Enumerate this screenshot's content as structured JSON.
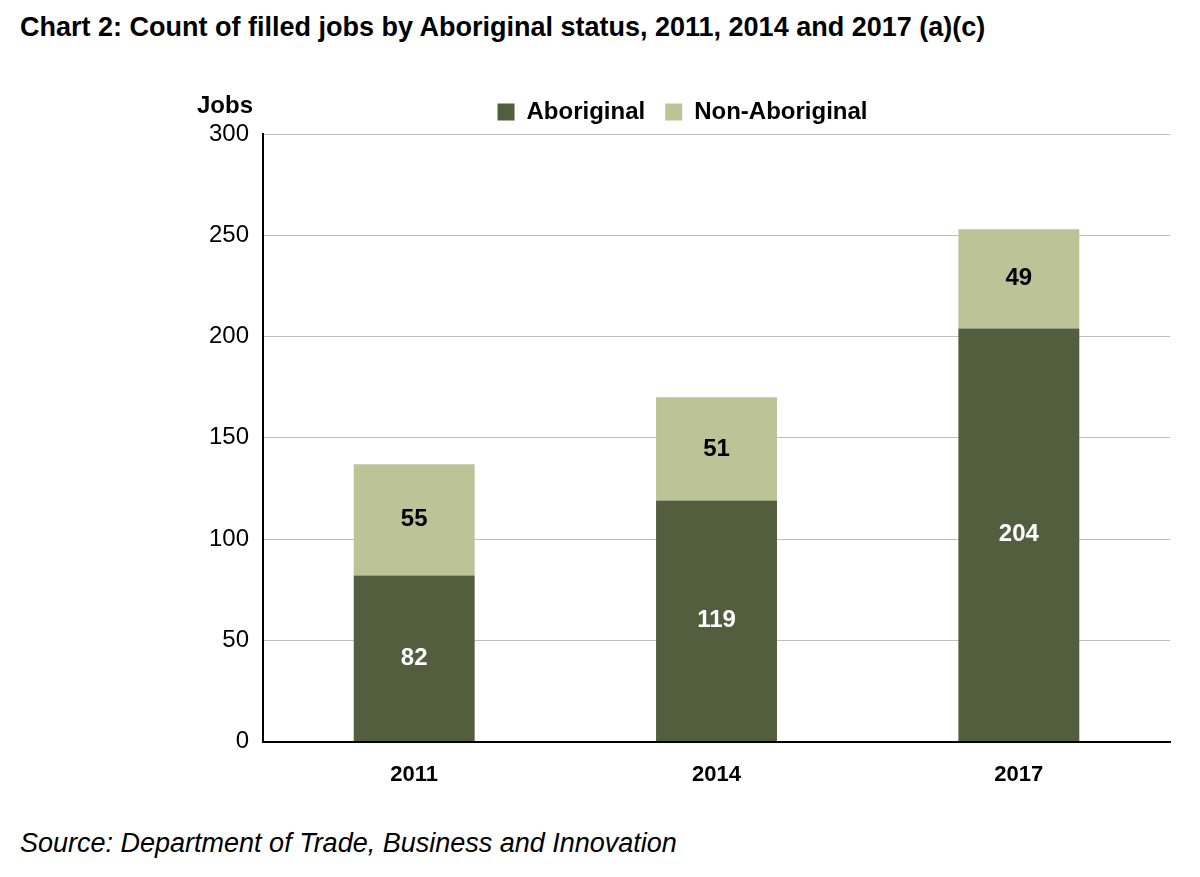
{
  "chart_data": {
    "type": "bar",
    "title": "Chart 2: Count of filled jobs by Aboriginal status, 2011, 2014 and 2017 (a)(c)",
    "ylabel": "Jobs",
    "source": "Source: Department of Trade, Business and Innovation",
    "categories": [
      "2011",
      "2014",
      "2017"
    ],
    "series": [
      {
        "name": "Aboriginal",
        "color": "#525e3e",
        "values": [
          82,
          119,
          204
        ]
      },
      {
        "name": "Non-Aboriginal",
        "color": "#bcc497",
        "values": [
          55,
          51,
          49
        ]
      }
    ],
    "ylim": [
      0,
      300
    ],
    "yticks": [
      0,
      50,
      100,
      150,
      200,
      250,
      300
    ],
    "stacked": true,
    "data_labels": true,
    "legend": "top",
    "grid": true
  }
}
